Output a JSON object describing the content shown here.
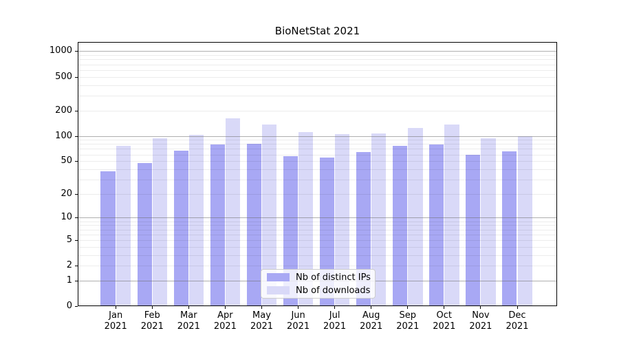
{
  "title": "BioNetStat 2021",
  "chart_data": {
    "type": "bar",
    "title": "BioNetStat 2021",
    "months": [
      "Jan",
      "Feb",
      "Mar",
      "Apr",
      "May",
      "Jun",
      "Jul",
      "Aug",
      "Sep",
      "Oct",
      "Nov",
      "Dec"
    ],
    "year": "2021",
    "categories": [
      "Jan 2021",
      "Feb 2021",
      "Mar 2021",
      "Apr 2021",
      "May 2021",
      "Jun 2021",
      "Jul 2021",
      "Aug 2021",
      "Sep 2021",
      "Oct 2021",
      "Nov 2021",
      "Dec 2021"
    ],
    "series": [
      {
        "name": "Nb of distinct IPs",
        "color": "#a8a8f4",
        "values": [
          38,
          47,
          67,
          79,
          80,
          57,
          55,
          64,
          76,
          79,
          59,
          65
        ]
      },
      {
        "name": "Nb of downloads",
        "color": "#d9d9f8",
        "values": [
          76,
          94,
          103,
          161,
          137,
          110,
          104,
          106,
          124,
          137,
          93,
          99
        ]
      }
    ],
    "xlabel": "",
    "ylabel": "",
    "y_scale": "log1p",
    "y_ticks": [
      0,
      1,
      2,
      5,
      10,
      20,
      50,
      100,
      200,
      500,
      1000
    ],
    "ylim": [
      0,
      1300
    ],
    "grid": true,
    "legend_position": "lower center"
  },
  "colors": {
    "bar_distinct_ips": "#a8a8f4",
    "bar_downloads": "#d9d9f8",
    "grid_major": "#6e6e6e",
    "grid_minor": "#e8e8e8",
    "axis": "#000000",
    "legend_border": "#cccccc",
    "background": "#ffffff"
  }
}
